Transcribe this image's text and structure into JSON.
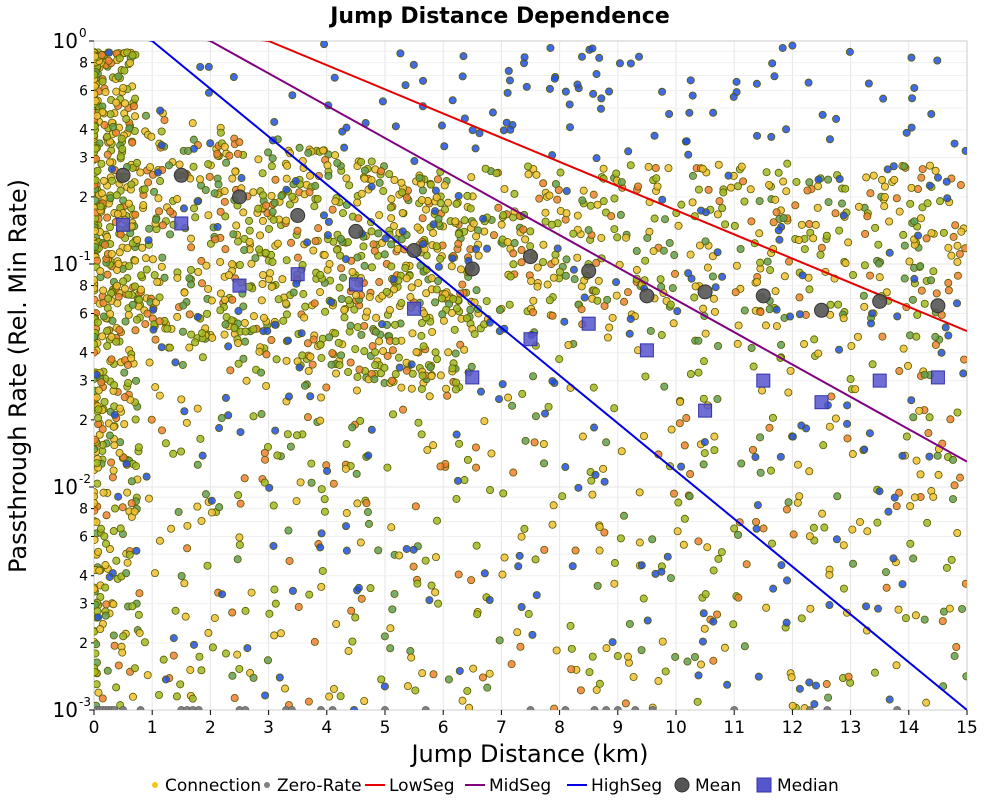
{
  "chart_data": {
    "type": "scatter",
    "title": "Jump Distance Dependence",
    "xlabel": "Jump Distance (km)",
    "ylabel": "Passthrough Rate (Rel. Min Rate)",
    "xlim": [
      0,
      15
    ],
    "ylim": [
      0.001,
      1
    ],
    "yscale": "log",
    "x_ticks": [
      "0",
      "1",
      "2",
      "3",
      "4",
      "5",
      "6",
      "7",
      "8",
      "9",
      "10",
      "11",
      "12",
      "13",
      "14",
      "15"
    ],
    "y_major_ticks": [
      {
        "base": "10",
        "exp": "0",
        "value": 1
      },
      {
        "base": "10",
        "exp": "-1",
        "value": 0.1
      },
      {
        "base": "10",
        "exp": "-2",
        "value": 0.01
      },
      {
        "base": "10",
        "exp": "-3",
        "value": 0.001
      }
    ],
    "y_minor_ticks": [
      {
        "label": "8",
        "value": 0.8
      },
      {
        "label": "6",
        "value": 0.6
      },
      {
        "label": "4",
        "value": 0.4
      },
      {
        "label": "3",
        "value": 0.3
      },
      {
        "label": "2",
        "value": 0.2
      },
      {
        "label": "8",
        "value": 0.08
      },
      {
        "label": "6",
        "value": 0.06
      },
      {
        "label": "4",
        "value": 0.04
      },
      {
        "label": "3",
        "value": 0.03
      },
      {
        "label": "2",
        "value": 0.02
      },
      {
        "label": "8",
        "value": 0.008
      },
      {
        "label": "6",
        "value": 0.006
      },
      {
        "label": "4",
        "value": 0.004
      },
      {
        "label": "3",
        "value": 0.003
      },
      {
        "label": "2",
        "value": 0.002
      }
    ],
    "grid": true,
    "legend_position": "bottom",
    "legend": [
      {
        "label": "Connection",
        "kind": "dot",
        "color": "#f5c518"
      },
      {
        "label": "Zero-Rate",
        "kind": "dot",
        "color": "#808080"
      },
      {
        "label": "LowSeg",
        "kind": "line",
        "color": "#e60000"
      },
      {
        "label": "MidSeg",
        "kind": "line",
        "color": "#800080"
      },
      {
        "label": "HighSeg",
        "kind": "line",
        "color": "#0000e6"
      },
      {
        "label": "Mean",
        "kind": "circle",
        "color": "#555555"
      },
      {
        "label": "Median",
        "kind": "square",
        "color": "#5555cc"
      }
    ],
    "colors": {
      "connection_yellow": "#f0c030",
      "connection_olive": "#a0b820",
      "connection_green": "#60a050",
      "connection_orange": "#f08030",
      "connection_blue": "#2050e0",
      "zero_rate": "#808080",
      "low_seg": "#e60000",
      "mid_seg": "#800080",
      "high_seg": "#0000e6",
      "mean": "#555555",
      "median": "#5555cc"
    },
    "series": [
      {
        "name": "LowSeg",
        "type": "line",
        "x": [
          0,
          3,
          15
        ],
        "y": [
          1.25,
          1.0,
          0.05
        ]
      },
      {
        "name": "MidSeg",
        "type": "line",
        "x": [
          0,
          2,
          15
        ],
        "y": [
          1.4,
          1.0,
          0.013
        ]
      },
      {
        "name": "HighSeg",
        "type": "line",
        "x": [
          0,
          1,
          15
        ],
        "y": [
          1.15,
          1.0,
          0.001
        ]
      },
      {
        "name": "Mean",
        "type": "marker",
        "x": [
          0.5,
          1.5,
          2.5,
          3.5,
          4.5,
          5.5,
          6.5,
          7.5,
          8.5,
          9.5,
          10.5,
          11.5,
          12.5,
          13.5,
          14.5
        ],
        "y": [
          0.25,
          0.25,
          0.2,
          0.165,
          0.14,
          0.115,
          0.095,
          0.108,
          0.093,
          0.072,
          0.075,
          0.072,
          0.062,
          0.068,
          0.065
        ]
      },
      {
        "name": "Median",
        "type": "marker",
        "x": [
          0.5,
          1.5,
          2.5,
          3.5,
          4.5,
          5.5,
          6.5,
          7.5,
          8.5,
          9.5,
          10.5,
          11.5,
          12.5,
          13.5,
          14.5
        ],
        "y": [
          0.15,
          0.152,
          0.08,
          0.09,
          0.081,
          0.063,
          0.031,
          0.046,
          0.054,
          0.041,
          0.022,
          0.03,
          0.024,
          0.03,
          0.031
        ]
      },
      {
        "name": "Zero-Rate",
        "type": "scatter",
        "x": [
          0.05,
          0.1,
          0.15,
          0.2,
          0.25,
          0.3,
          0.35,
          0.5,
          0.8,
          1.5,
          1.6,
          1.7,
          1.8,
          2.5,
          2.6,
          3.3,
          3.4,
          3.9,
          4.1,
          5.0,
          5.7,
          7.5,
          8.1,
          8.6,
          8.8,
          9.0,
          9.3,
          9.6,
          11.0,
          12.3,
          12.6,
          13.8
        ],
        "y": [
          0.001,
          0.001,
          0.001,
          0.001,
          0.001,
          0.001,
          0.001,
          0.001,
          0.001,
          0.001,
          0.001,
          0.001,
          0.001,
          0.001,
          0.001,
          0.001,
          0.001,
          0.001,
          0.001,
          0.001,
          0.001,
          0.001,
          0.001,
          0.001,
          0.001,
          0.001,
          0.001,
          0.001,
          0.001,
          0.001,
          0.001,
          0.001
        ]
      }
    ]
  }
}
